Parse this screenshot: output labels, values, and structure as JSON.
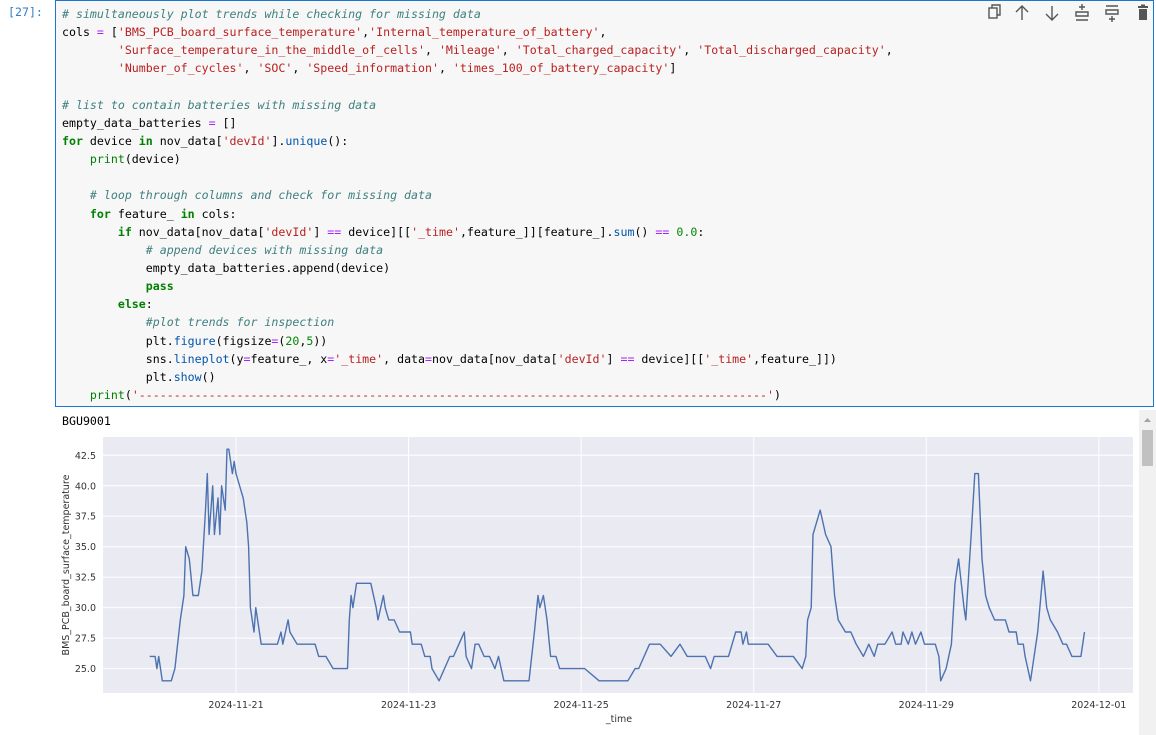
{
  "cell": {
    "prompt": "[27]:",
    "code_blocks": [
      [
        "# simultaneously plot trends while checking for missing data",
        "cols = ['BMS_PCB_board_surface_temperature','Internal_temperature_of_battery',",
        "        'Surface_temperature_in_the_middle_of_cells', 'Mileage', 'Total_charged_capacity', 'Total_discharged_capacity',",
        "        'Number_of_cycles', 'SOC', 'Speed_information', 'times_100_of_battery_capacity']"
      ],
      [
        "# list to contain batteries with missing data",
        "empty_data_batteries = []",
        "for device in nov_data['devId'].unique():",
        "    print(device)"
      ],
      [
        "    # loop through columns and check for missing data",
        "    for feature_ in cols:",
        "        if nov_data[nov_data['devId'] == device][['_time',feature_]][feature_].sum() == 0.0:",
        "            # append devices with missing data",
        "            empty_data_batteries.append(device)",
        "            pass",
        "        else:",
        "            #plot trends for inspection",
        "            plt.figure(figsize=(20,5))",
        "            sns.lineplot(y=feature_, x='_time', data=nov_data[nov_data['devId'] == device][['_time',feature_]])",
        "            plt.show()",
        "    print('------------------------------------------------------------------------------------------')"
      ]
    ]
  },
  "output": {
    "stdout": "BGU9001",
    "chart_data": {
      "type": "line",
      "xlabel": "_time",
      "ylabel": "BMS_PCB_board_surface_temperature",
      "color": "#4c72b0",
      "grid": true,
      "background": "#eaeaf2",
      "xlim": [
        "2024-11-19T11:00",
        "2024-12-01T09:30"
      ],
      "xticks": [
        "2024-11-21",
        "2024-11-23",
        "2024-11-25",
        "2024-11-27",
        "2024-11-29",
        "2024-12-01"
      ],
      "ylim": [
        23,
        44
      ],
      "yticks": [
        {
          "value": 25,
          "label": "25.0"
        },
        27.5,
        {
          "value": 30,
          "label": "30.0"
        },
        32.5,
        {
          "value": 35,
          "label": "35.0"
        },
        37.5,
        {
          "value": 40,
          "label": "40.0"
        },
        42.5
      ],
      "x": [
        "2024-11-20T00:00",
        "2024-11-20T01:30",
        "2024-11-20T02:00",
        "2024-11-20T02:30",
        "2024-11-20T03:00",
        "2024-11-20T03:30",
        "2024-11-20T06:00",
        "2024-11-20T07:00",
        "2024-11-20T08:30",
        "2024-11-20T09:30",
        "2024-11-20T10:00",
        "2024-11-20T11:00",
        "2024-11-20T12:00",
        "2024-11-20T13:30",
        "2024-11-20T14:30",
        "2024-11-20T15:30",
        "2024-11-20T16:00",
        "2024-11-20T16:30",
        "2024-11-20T17:30",
        "2024-11-20T18:00",
        "2024-11-20T19:00",
        "2024-11-20T19:30",
        "2024-11-20T20:00",
        "2024-11-20T21:00",
        "2024-11-20T21:30",
        "2024-11-20T22:00",
        "2024-11-20T23:00",
        "2024-11-20T23:30",
        "2024-11-21T00:00",
        "2024-11-21T01:00",
        "2024-11-21T02:00",
        "2024-11-21T03:00",
        "2024-11-21T03:30",
        "2024-11-21T04:00",
        "2024-11-21T05:00",
        "2024-11-21T05:30",
        "2024-11-21T06:30",
        "2024-11-21T07:00",
        "2024-11-21T09:00",
        "2024-11-21T11:30",
        "2024-11-21T12:30",
        "2024-11-21T13:00",
        "2024-11-21T14:30",
        "2024-11-21T15:00",
        "2024-11-21T17:00",
        "2024-11-21T20:00",
        "2024-11-21T22:00",
        "2024-11-21T23:00",
        "2024-11-22T01:00",
        "2024-11-22T03:00",
        "2024-11-22T07:00",
        "2024-11-22T07:30",
        "2024-11-22T08:00",
        "2024-11-22T08:30",
        "2024-11-22T09:30",
        "2024-11-22T13:30",
        "2024-11-22T15:00",
        "2024-11-22T15:30",
        "2024-11-22T17:00",
        "2024-11-22T17:30",
        "2024-11-22T18:30",
        "2024-11-22T20:00",
        "2024-11-22T21:30",
        "2024-11-23T00:30",
        "2024-11-23T01:00",
        "2024-11-23T03:30",
        "2024-11-23T04:30",
        "2024-11-23T06:00",
        "2024-11-23T06:30",
        "2024-11-23T08:30",
        "2024-11-23T10:00",
        "2024-11-23T11:30",
        "2024-11-23T12:30",
        "2024-11-23T14:00",
        "2024-11-23T15:30",
        "2024-11-23T16:00",
        "2024-11-23T17:30",
        "2024-11-23T18:30",
        "2024-11-23T19:30",
        "2024-11-23T21:00",
        "2024-11-23T22:30",
        "2024-11-24T00:00",
        "2024-11-24T01:00",
        "2024-11-24T02:30",
        "2024-11-24T09:30",
        "2024-11-24T11:00",
        "2024-11-24T12:00",
        "2024-11-24T12:30",
        "2024-11-24T13:30",
        "2024-11-24T14:30",
        "2024-11-24T15:30",
        "2024-11-24T17:00",
        "2024-11-24T18:00",
        "2024-11-24T22:30",
        "2024-11-25T01:00",
        "2024-11-25T05:00",
        "2024-11-25T13:00",
        "2024-11-25T15:00",
        "2024-11-25T16:00",
        "2024-11-25T19:00",
        "2024-11-25T22:00",
        "2024-11-26T01:00",
        "2024-11-26T03:30",
        "2024-11-26T05:30",
        "2024-11-26T07:30",
        "2024-11-26T10:30",
        "2024-11-26T12:00",
        "2024-11-26T13:00",
        "2024-11-26T17:00",
        "2024-11-26T19:00",
        "2024-11-26T20:30",
        "2024-11-26T21:00",
        "2024-11-26T22:00",
        "2024-11-26T22:30",
        "2024-11-27T01:30",
        "2024-11-27T04:00",
        "2024-11-27T06:30",
        "2024-11-27T11:00",
        "2024-11-27T13:30",
        "2024-11-27T14:30",
        "2024-11-27T15:00",
        "2024-11-27T16:00",
        "2024-11-27T16:30",
        "2024-11-27T18:30",
        "2024-11-27T20:00",
        "2024-11-27T21:30",
        "2024-11-27T22:30",
        "2024-11-27T23:30",
        "2024-11-28T01:30",
        "2024-11-28T03:00",
        "2024-11-28T04:30",
        "2024-11-28T06:30",
        "2024-11-28T08:00",
        "2024-11-28T09:30",
        "2024-11-28T10:30",
        "2024-11-28T12:30",
        "2024-11-28T14:30",
        "2024-11-28T15:30",
        "2024-11-28T17:00",
        "2024-11-28T17:30",
        "2024-11-28T19:00",
        "2024-11-28T20:00",
        "2024-11-28T21:00",
        "2024-11-28T22:30",
        "2024-11-28T23:30",
        "2024-11-29T02:30",
        "2024-11-29T03:30",
        "2024-11-29T04:00",
        "2024-11-29T05:30",
        "2024-11-29T07:00",
        "2024-11-29T08:00",
        "2024-11-29T09:00",
        "2024-11-29T10:30",
        "2024-11-29T11:00",
        "2024-11-29T12:30",
        "2024-11-29T13:30",
        "2024-11-29T14:30",
        "2024-11-29T15:30",
        "2024-11-29T16:30",
        "2024-11-29T17:30",
        "2024-11-29T19:00",
        "2024-11-29T22:00",
        "2024-11-29T23:00",
        "2024-11-30T01:00",
        "2024-11-30T01:30",
        "2024-11-30T03:00",
        "2024-11-30T03:30",
        "2024-11-30T05:00",
        "2024-11-30T06:30",
        "2024-11-30T07:00",
        "2024-11-30T08:30",
        "2024-11-30T09:30",
        "2024-11-30T10:30",
        "2024-11-30T12:30",
        "2024-11-30T14:00",
        "2024-11-30T15:00",
        "2024-11-30T16:30",
        "2024-11-30T19:00",
        "2024-11-30T20:00"
      ],
      "values": [
        26,
        26,
        25,
        26,
        25,
        24,
        24,
        25,
        29,
        31,
        35,
        34,
        31,
        31,
        33,
        38,
        41,
        36,
        40,
        36,
        39,
        36,
        40,
        38,
        43,
        43,
        41,
        42,
        41,
        40,
        39,
        37,
        35,
        30,
        28,
        30,
        28,
        27,
        27,
        27,
        28,
        27,
        29,
        28,
        27,
        27,
        27,
        26,
        26,
        25,
        25,
        29,
        31,
        30,
        32,
        32,
        30,
        29,
        31,
        30,
        29,
        29,
        28,
        28,
        27,
        27,
        26,
        26,
        25,
        24,
        25,
        26,
        26,
        27,
        28,
        26,
        25,
        27,
        27,
        26,
        26,
        25,
        26,
        24,
        24,
        28,
        31,
        30,
        31,
        29,
        26,
        26,
        25,
        25,
        25,
        24,
        24,
        25,
        25,
        27,
        27,
        26,
        27,
        26,
        26,
        26,
        25,
        26,
        26,
        28,
        28,
        27,
        28,
        27,
        27,
        27,
        26,
        26,
        25,
        26,
        29,
        30,
        36,
        38,
        36,
        35,
        31,
        29,
        28,
        28,
        27,
        26,
        27,
        26,
        27,
        27,
        28,
        27,
        27,
        28,
        27,
        28,
        27,
        28,
        27,
        27,
        26,
        24,
        25,
        27,
        32,
        34,
        30,
        29,
        36,
        41,
        41,
        34,
        31,
        30,
        29,
        29,
        28,
        28,
        27,
        27,
        26,
        24,
        27,
        28,
        33,
        30,
        29,
        28,
        27,
        27,
        26,
        26,
        28
      ]
    }
  }
}
